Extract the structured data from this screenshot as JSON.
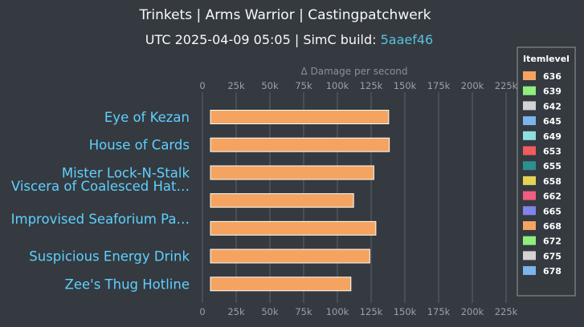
{
  "chart_data": {
    "type": "bar",
    "orientation": "horizontal",
    "title": "Trinkets | Arms Warrior | Castingpatchwerk",
    "subtitle_prefix": "UTC 2025-04-09 05:05 | SimC build: ",
    "subtitle_link": "5aaef46",
    "xlabel": "Δ Damage per second",
    "xlim": [
      0,
      225000
    ],
    "x_ticks": [
      "0",
      "25k",
      "50k",
      "75k",
      "100k",
      "125k",
      "150k",
      "175k",
      "200k",
      "225k"
    ],
    "grid": true,
    "legend_placement": "right",
    "legend_title": "Itemlevel",
    "categories": [
      "Eye of Kezan",
      "House of Cards",
      "Mister Lock-N-Stalk",
      "Viscera of Coalesced Hat…",
      "Improvised Seaforium Pa…",
      "Suspicious Energy Drink",
      "Zee's Thug Hotline"
    ],
    "series": [
      {
        "name": "636",
        "color": "#f4a460",
        "values": [
          138000,
          138500,
          127000,
          112000,
          128500,
          124000,
          110000
        ]
      }
    ],
    "legend": [
      {
        "label": "636",
        "color": "#f4a460"
      },
      {
        "label": "639",
        "color": "#90ee7e"
      },
      {
        "label": "642",
        "color": "#d3d3d3"
      },
      {
        "label": "645",
        "color": "#7cb5ec"
      },
      {
        "label": "649",
        "color": "#8ee0de"
      },
      {
        "label": "653",
        "color": "#f25c5c"
      },
      {
        "label": "655",
        "color": "#2b908f"
      },
      {
        "label": "658",
        "color": "#e4d354"
      },
      {
        "label": "662",
        "color": "#f15c80"
      },
      {
        "label": "665",
        "color": "#8085e9"
      },
      {
        "label": "668",
        "color": "#f4a460"
      },
      {
        "label": "672",
        "color": "#90ee7e"
      },
      {
        "label": "675",
        "color": "#d3d3d3"
      },
      {
        "label": "678",
        "color": "#7cb5ec"
      }
    ]
  }
}
